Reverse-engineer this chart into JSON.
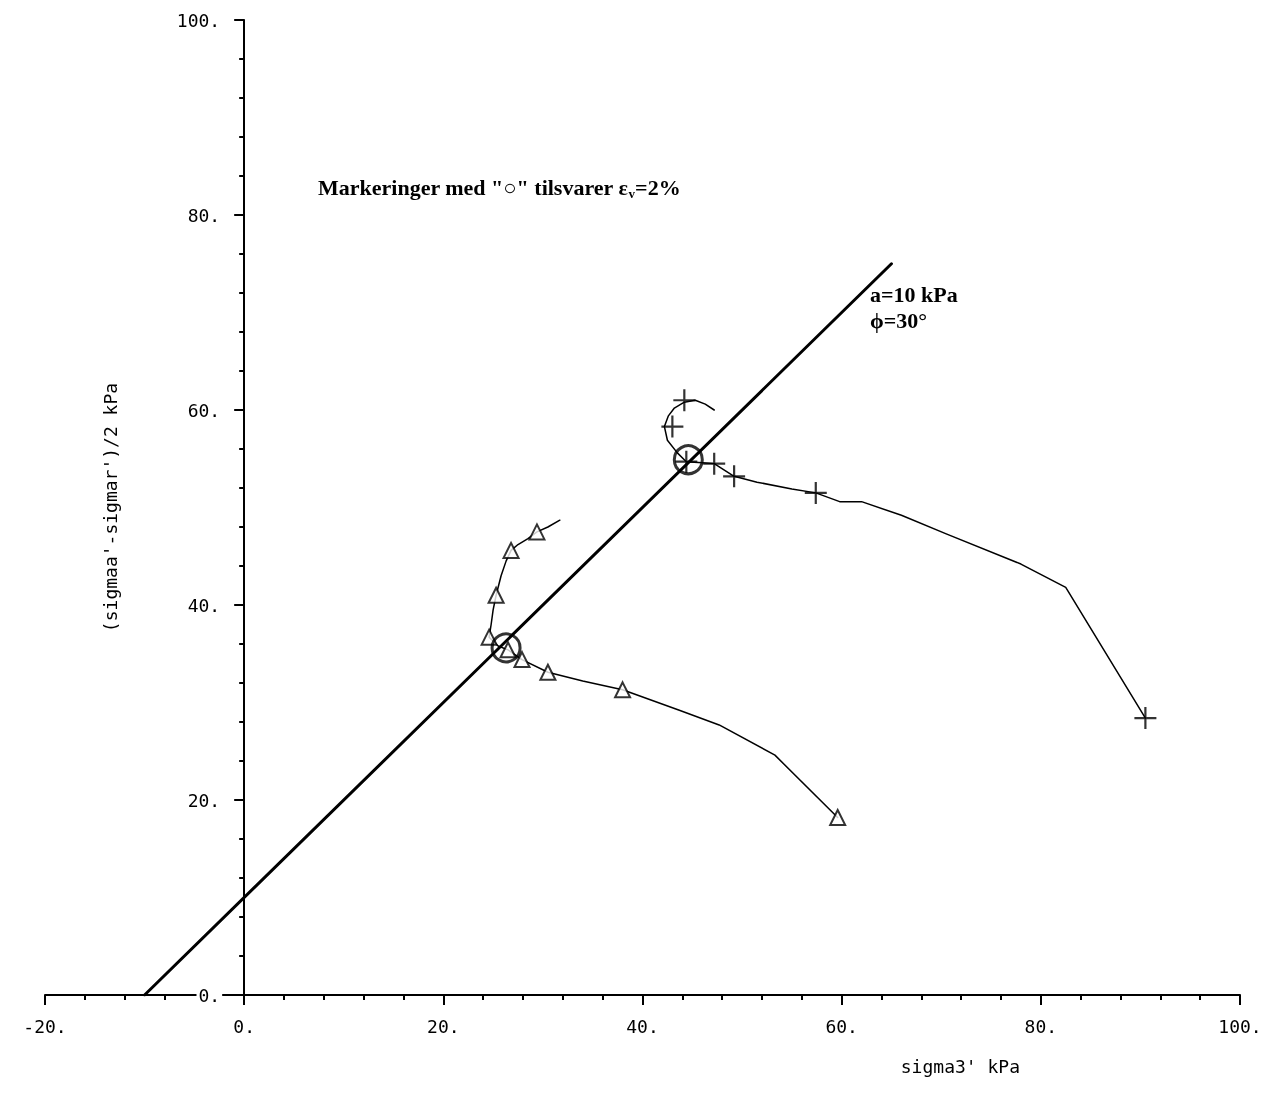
{
  "chart_data": {
    "type": "line",
    "xlabel": "sigma3' kPa",
    "ylabel": "(sigmaa'-sigmar')/2 kPa",
    "annotations": [
      "Markeringer med \"○\" tilsvarer ε$_{v}$=2%",
      "a=10 kPa",
      "ϕ=30°"
    ],
    "xlim": [
      -20,
      100
    ],
    "ylim": [
      0,
      100
    ],
    "xticks": [
      {
        "value": -20,
        "label": "-20."
      },
      {
        "value": 0,
        "label": "0."
      },
      {
        "value": 20,
        "label": "20."
      },
      {
        "value": 40,
        "label": "40."
      },
      {
        "value": 60,
        "label": "60."
      },
      {
        "value": 80,
        "label": "80."
      },
      {
        "value": 100,
        "label": "100."
      }
    ],
    "yticks": [
      {
        "value": 0,
        "label": "0."
      },
      {
        "value": 20,
        "label": "20."
      },
      {
        "value": 40,
        "label": "40."
      },
      {
        "value": 60,
        "label": "60."
      },
      {
        "value": 80,
        "label": "80."
      },
      {
        "value": 100,
        "label": "100."
      }
    ],
    "series": [
      {
        "type": "line",
        "color": "#000000",
        "marker": "none",
        "x": [
          31.7,
          30.5,
          29.4,
          28.5,
          27.5,
          26.8,
          26.3,
          25.8,
          25.3,
          25.0,
          24.8,
          24.6,
          25.5,
          26.5,
          27.9,
          30.5,
          34.0,
          38.0,
          43.7,
          47.7,
          53.3,
          59.6
        ],
        "values": [
          48.7,
          48.0,
          47.5,
          46.8,
          46.2,
          45.6,
          44.5,
          43.0,
          41.0,
          39.5,
          38.0,
          36.7,
          35.8,
          35.4,
          34.4,
          33.1,
          32.2,
          31.3,
          29.2,
          27.7,
          24.6,
          18.2
        ]
      },
      {
        "type": "scatter",
        "color": "#000000",
        "marker": "triangle",
        "x": [
          29.4,
          26.8,
          25.3,
          24.6,
          26.5,
          27.9,
          30.5,
          38.0,
          59.6
        ],
        "values": [
          47.5,
          45.6,
          41.0,
          36.7,
          35.4,
          34.4,
          33.1,
          31.3,
          18.2
        ]
      },
      {
        "type": "line",
        "color": "#000000",
        "marker": "none",
        "x": [
          47.2,
          46.3,
          45.3,
          44.2,
          43.2,
          42.6,
          42.2,
          42.5,
          43.5,
          44.4,
          46.0,
          47.2,
          49.2,
          51.5,
          55.0,
          57.4,
          59.8,
          62.0,
          66.0,
          70.5,
          78.0,
          82.5,
          90.5
        ],
        "values": [
          60.0,
          60.6,
          61.0,
          60.8,
          60.2,
          59.4,
          58.3,
          56.9,
          55.6,
          54.7,
          54.6,
          54.5,
          53.2,
          52.6,
          51.9,
          51.5,
          50.6,
          50.6,
          49.2,
          47.3,
          44.2,
          41.8,
          28.4
        ]
      },
      {
        "type": "scatter",
        "color": "#000000",
        "marker": "cross",
        "x": [
          44.2,
          43.0,
          44.4,
          47.2,
          49.2,
          57.4,
          90.5
        ],
        "values": [
          61.0,
          58.3,
          54.7,
          54.5,
          53.2,
          51.5,
          28.4
        ]
      },
      {
        "type": "line",
        "color": "#000000",
        "marker": "none",
        "x": [
          -10,
          65
        ],
        "values": [
          0,
          75
        ]
      },
      {
        "type": "scatter",
        "color": "#000000",
        "marker": "circle",
        "x": [
          26.3,
          44.6
        ],
        "values": [
          35.6,
          54.9
        ]
      }
    ]
  }
}
